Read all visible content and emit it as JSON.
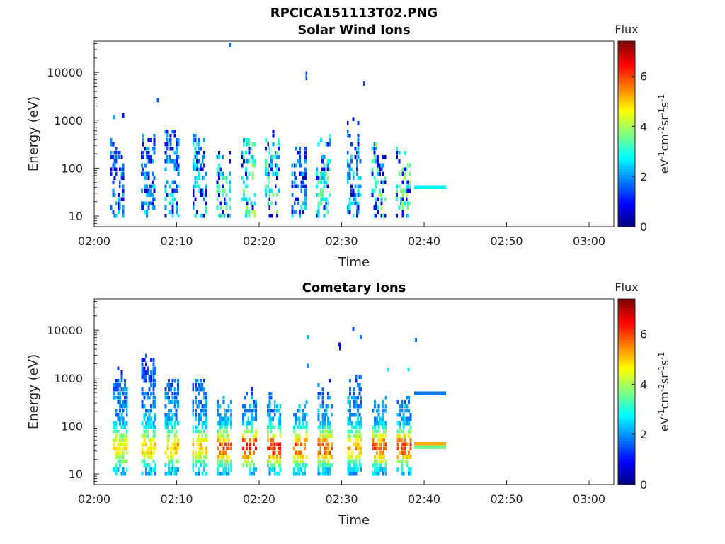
{
  "figure_title": "RPCICA151113T02.PNG",
  "chart_data": [
    {
      "type": "heatmap",
      "title": "Solar Wind Ions",
      "xlabel": "Time",
      "ylabel": "Energy (eV)",
      "x_ticks": [
        "02:00",
        "02:10",
        "02:20",
        "02:30",
        "02:40",
        "02:50",
        "03:00"
      ],
      "xlim_minutes": [
        0,
        63
      ],
      "y_scale": "log",
      "ylim": [
        6,
        45000
      ],
      "y_ticks": [
        {
          "label": "10",
          "value": 10
        },
        {
          "label": "100",
          "value": 100
        },
        {
          "label": "1000",
          "value": 1000
        },
        {
          "label": "10000",
          "value": 10000
        }
      ],
      "colorbar": {
        "title": "Flux",
        "label": "eV-1cm-2sr-1s-1",
        "range": [
          0,
          7.4
        ],
        "ticks": [
          "0",
          "2",
          "4",
          "6"
        ],
        "colormap": "jet"
      },
      "bursts": [
        {
          "t": 2.8,
          "emax": 450,
          "peak": 2.2,
          "sat": 0.15
        },
        {
          "t": 6.5,
          "emax": 600,
          "peak": 2.4,
          "sat": 0.15
        },
        {
          "t": 9.4,
          "emax": 900,
          "peak": 2.6,
          "sat": 0.15
        },
        {
          "t": 12.8,
          "emax": 650,
          "peak": 3.0,
          "sat": 0.15
        },
        {
          "t": 15.7,
          "emax": 260,
          "peak": 3.4,
          "sat": 0.15
        },
        {
          "t": 18.7,
          "emax": 520,
          "peak": 3.7,
          "sat": 0.15
        },
        {
          "t": 21.6,
          "emax": 700,
          "peak": 3.6,
          "sat": 0.15
        },
        {
          "t": 24.8,
          "emax": 330,
          "peak": 2.4,
          "sat": 0.15
        },
        {
          "t": 27.8,
          "emax": 520,
          "peak": 3.6,
          "sat": 0.15
        },
        {
          "t": 31.5,
          "emax": 1000,
          "peak": 2.6,
          "sat": 0.15
        },
        {
          "t": 34.5,
          "emax": 350,
          "peak": 3.8,
          "sat": 0.15
        },
        {
          "t": 37.5,
          "emax": 280,
          "peak": 3.8,
          "sat": 0.15
        }
      ],
      "band": {
        "t0": 38.8,
        "t1": 42.6,
        "lines": [
          {
            "e": 40,
            "val": 2.7
          }
        ]
      },
      "isolated": [
        {
          "t": 16.3,
          "e": 37000,
          "val": 1.7
        },
        {
          "t": 25.6,
          "e": 9500,
          "val": 1.4
        },
        {
          "t": 25.6,
          "e": 7600,
          "val": 1.5
        },
        {
          "t": 32.6,
          "e": 5800,
          "val": 1.4
        },
        {
          "t": 7.6,
          "e": 2600,
          "val": 1.6
        },
        {
          "t": 2.3,
          "e": 1150,
          "val": 2.2
        },
        {
          "t": 3.4,
          "e": 1250,
          "val": 1.0
        },
        {
          "t": 31.3,
          "e": 1050,
          "val": 0.8
        }
      ]
    },
    {
      "type": "heatmap",
      "title": "Cometary Ions",
      "xlabel": "Time",
      "ylabel": "Energy (eV)",
      "x_ticks": [
        "02:00",
        "02:10",
        "02:20",
        "02:30",
        "02:40",
        "02:50",
        "03:00"
      ],
      "xlim_minutes": [
        0,
        63
      ],
      "y_scale": "log",
      "ylim": [
        6,
        45000
      ],
      "y_ticks": [
        {
          "label": "10",
          "value": 10
        },
        {
          "label": "100",
          "value": 100
        },
        {
          "label": "1000",
          "value": 1000
        },
        {
          "label": "10000",
          "value": 10000
        }
      ],
      "colorbar": {
        "title": "Flux",
        "label": "eV-1cm-2sr-1s-1",
        "range": [
          0,
          7.4
        ],
        "ticks": [
          "0",
          "2",
          "4",
          "6"
        ],
        "colormap": "jet"
      },
      "bursts": [
        {
          "t": 3.2,
          "emax": 1700,
          "peak": 4.8,
          "sat": 0.0
        },
        {
          "t": 6.6,
          "emax": 3000,
          "peak": 4.9,
          "sat": 0.0
        },
        {
          "t": 9.4,
          "emax": 1100,
          "peak": 5.0,
          "sat": 0.0
        },
        {
          "t": 12.8,
          "emax": 1100,
          "peak": 5.0,
          "sat": 0.0
        },
        {
          "t": 15.8,
          "emax": 450,
          "peak": 5.8,
          "sat": 0.0
        },
        {
          "t": 18.8,
          "emax": 650,
          "peak": 6.4,
          "sat": 0.0
        },
        {
          "t": 21.8,
          "emax": 650,
          "peak": 6.2,
          "sat": 0.0
        },
        {
          "t": 25.0,
          "emax": 450,
          "peak": 5.8,
          "sat": 0.0
        },
        {
          "t": 28.0,
          "emax": 900,
          "peak": 5.9,
          "sat": 0.0
        },
        {
          "t": 31.6,
          "emax": 1200,
          "peak": 5.3,
          "sat": 0.0
        },
        {
          "t": 34.6,
          "emax": 500,
          "peak": 5.9,
          "sat": 0.0
        },
        {
          "t": 37.6,
          "emax": 500,
          "peak": 6.0,
          "sat": 0.0
        }
      ],
      "band": {
        "t0": 38.8,
        "t1": 42.6,
        "lines": [
          {
            "e": 480,
            "val": 1.8
          },
          {
            "e": 42,
            "val": 5.2
          },
          {
            "e": 36,
            "val": 3.6
          }
        ]
      },
      "isolated": [
        {
          "t": 25.8,
          "e": 7200,
          "val": 2.2
        },
        {
          "t": 31.3,
          "e": 10500,
          "val": 1.5
        },
        {
          "t": 32.2,
          "e": 7200,
          "val": 1.8
        },
        {
          "t": 29.6,
          "e": 5000,
          "val": 1.0
        },
        {
          "t": 29.7,
          "e": 4200,
          "val": 1.0
        },
        {
          "t": 38.9,
          "e": 6200,
          "val": 1.8
        },
        {
          "t": 25.8,
          "e": 1800,
          "val": 2.0
        },
        {
          "t": 35.5,
          "e": 1500,
          "val": 2.8
        },
        {
          "t": 38.0,
          "e": 1500,
          "val": 2.6
        }
      ]
    }
  ]
}
